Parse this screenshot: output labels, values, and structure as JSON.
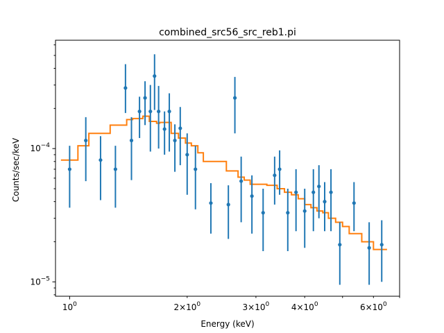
{
  "chart_data": {
    "type": "scatter",
    "title": "combined_src56_src_reb1.pi",
    "xlabel": "Energy (keV)",
    "ylabel": "Counts/sec/keV",
    "xscale": "log",
    "yscale": "log",
    "xlim": [
      0.92,
      7.0
    ],
    "ylim": [
      7.8e-06,
      0.00065
    ],
    "grid": false,
    "x_major_ticks": [
      {
        "value": 1,
        "base": "10",
        "exp": "0"
      }
    ],
    "x_minor_ticks": [
      {
        "value": 2,
        "base": "2×10",
        "exp": "0"
      },
      {
        "value": 3,
        "base": "3×10",
        "exp": "0"
      },
      {
        "value": 4,
        "base": "4×10",
        "exp": "0"
      },
      {
        "value": 6,
        "base": "6×10",
        "exp": "0"
      }
    ],
    "y_major_ticks": [
      {
        "value": 0.0001,
        "base": "10",
        "exp": "−4"
      },
      {
        "value": 1e-05,
        "base": "10",
        "exp": "−5"
      }
    ],
    "colors": {
      "data": "#1f77b4",
      "model": "#ff7f0e"
    },
    "data": [
      {
        "x": 1.0,
        "y": 7e-05,
        "ylo": 3.6e-05,
        "yhi": 0.000105
      },
      {
        "x": 1.1,
        "y": 0.000115,
        "ylo": 5.7e-05,
        "yhi": 0.000172
      },
      {
        "x": 1.2,
        "y": 8.2e-05,
        "ylo": 4.1e-05,
        "yhi": 0.000124
      },
      {
        "x": 1.31,
        "y": 7e-05,
        "ylo": 3.6e-05,
        "yhi": 0.000105
      },
      {
        "x": 1.39,
        "y": 0.000285,
        "ylo": 0.000185,
        "yhi": 0.00043
      },
      {
        "x": 1.44,
        "y": 0.000115,
        "ylo": 5.8e-05,
        "yhi": 0.000172
      },
      {
        "x": 1.51,
        "y": 0.00019,
        "ylo": 0.00012,
        "yhi": 0.000245
      },
      {
        "x": 1.56,
        "y": 0.00024,
        "ylo": 0.00015,
        "yhi": 0.00032
      },
      {
        "x": 1.61,
        "y": 0.00019,
        "ylo": 9.5e-05,
        "yhi": 0.0003
      },
      {
        "x": 1.65,
        "y": 0.00035,
        "ylo": 0.000195,
        "yhi": 0.00051
      },
      {
        "x": 1.69,
        "y": 0.00019,
        "ylo": 0.0001,
        "yhi": 0.000295
      },
      {
        "x": 1.75,
        "y": 0.00014,
        "ylo": 9e-05,
        "yhi": 0.00019
      },
      {
        "x": 1.8,
        "y": 0.00019,
        "ylo": 9.5e-05,
        "yhi": 0.00026
      },
      {
        "x": 1.86,
        "y": 0.000115,
        "ylo": 6.7e-05,
        "yhi": 0.000152
      },
      {
        "x": 1.92,
        "y": 0.000142,
        "ylo": 7.5e-05,
        "yhi": 0.000205
      },
      {
        "x": 2.0,
        "y": 9e-05,
        "ylo": 4.5e-05,
        "yhi": 0.00013
      },
      {
        "x": 2.1,
        "y": 7e-05,
        "ylo": 3.5e-05,
        "yhi": 0.000105
      },
      {
        "x": 2.3,
        "y": 3.9e-05,
        "ylo": 2.3e-05,
        "yhi": 5.5e-05
      },
      {
        "x": 2.55,
        "y": 3.8e-05,
        "ylo": 2.1e-05,
        "yhi": 5.3e-05
      },
      {
        "x": 2.65,
        "y": 0.00024,
        "ylo": 0.00013,
        "yhi": 0.000345
      },
      {
        "x": 2.75,
        "y": 5.7e-05,
        "ylo": 2.8e-05,
        "yhi": 8.7e-05
      },
      {
        "x": 2.93,
        "y": 4.4e-05,
        "ylo": 2.3e-05,
        "yhi": 6.3e-05
      },
      {
        "x": 3.13,
        "y": 3.3e-05,
        "ylo": 1.7e-05,
        "yhi": 5e-05
      },
      {
        "x": 3.35,
        "y": 6.3e-05,
        "ylo": 3.8e-05,
        "yhi": 8.7e-05
      },
      {
        "x": 3.45,
        "y": 7e-05,
        "ylo": 4.5e-05,
        "yhi": 9.7e-05
      },
      {
        "x": 3.62,
        "y": 3.3e-05,
        "ylo": 1.7e-05,
        "yhi": 5e-05
      },
      {
        "x": 3.8,
        "y": 4.7e-05,
        "ylo": 2.4e-05,
        "yhi": 7e-05
      },
      {
        "x": 4.0,
        "y": 3.4e-05,
        "ylo": 1.8e-05,
        "yhi": 5e-05
      },
      {
        "x": 4.21,
        "y": 4.7e-05,
        "ylo": 2.4e-05,
        "yhi": 7e-05
      },
      {
        "x": 4.35,
        "y": 5.2e-05,
        "ylo": 3e-05,
        "yhi": 7.5e-05
      },
      {
        "x": 4.5,
        "y": 4e-05,
        "ylo": 2.4e-05,
        "yhi": 5.6e-05
      },
      {
        "x": 4.67,
        "y": 4.7e-05,
        "ylo": 2.4e-05,
        "yhi": 7e-05
      },
      {
        "x": 4.92,
        "y": 1.9e-05,
        "ylo": 9.5e-06,
        "yhi": 2.8e-05
      },
      {
        "x": 5.35,
        "y": 3.9e-05,
        "ylo": 2.4e-05,
        "yhi": 5.6e-05
      },
      {
        "x": 5.85,
        "y": 1.8e-05,
        "ylo": 9.5e-06,
        "yhi": 2.8e-05
      },
      {
        "x": 6.3,
        "y": 1.9e-05,
        "ylo": 1e-05,
        "yhi": 2.9e-05
      }
    ],
    "model_step": {
      "edges": [
        0.95,
        1.05,
        1.12,
        1.27,
        1.4,
        1.45,
        1.54,
        1.6,
        1.67,
        1.7,
        1.82,
        1.9,
        1.98,
        2.05,
        2.13,
        2.2,
        2.52,
        2.7,
        2.8,
        2.9,
        3.2,
        3.4,
        3.55,
        3.7,
        3.85,
        4.0,
        4.15,
        4.3,
        4.45,
        4.6,
        4.8,
        5.0,
        5.2,
        5.6,
        6.0,
        6.5
      ],
      "values": [
        8.2e-05,
        0.000105,
        0.00013,
        0.00015,
        0.000165,
        0.000168,
        0.000175,
        0.00016,
        0.000155,
        0.000157,
        0.00013,
        0.00012,
        0.00011,
        0.000105,
        9.3e-05,
        8e-05,
        6.8e-05,
        6.1e-05,
        5.8e-05,
        5.4e-05,
        5.3e-05,
        5e-05,
        4.7e-05,
        4.5e-05,
        4.2e-05,
        3.8e-05,
        3.6e-05,
        3.4e-05,
        3.3e-05,
        3e-05,
        2.8e-05,
        2.6e-05,
        2.3e-05,
        2e-05,
        1.75e-05
      ]
    }
  }
}
